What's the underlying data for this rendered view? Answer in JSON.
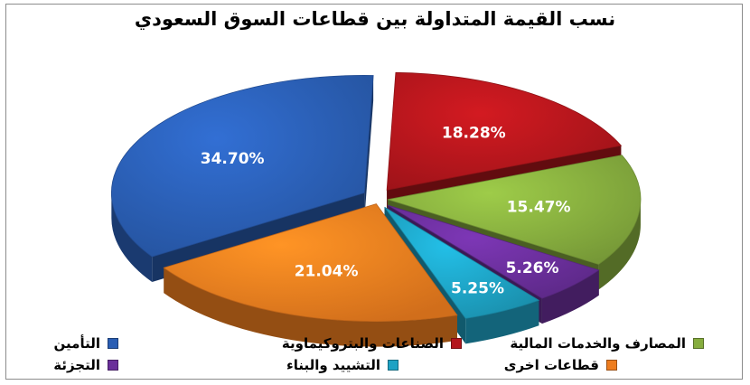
{
  "chart_data": {
    "type": "pie",
    "title": "نسب القيمة المتداولة بين قطاعات السوق السعودي",
    "legend_position": "bottom",
    "slices": [
      {
        "label": "الصناعات والبتروكيماوية",
        "value": 18.28,
        "value_label": "18.28%",
        "color": "#b3161c"
      },
      {
        "label": "المصارف والخدمات المالية",
        "value": 15.47,
        "value_label": "15.47%",
        "color": "#86ad3e"
      },
      {
        "label": "التجزئة",
        "value": 5.26,
        "value_label": "5.26%",
        "color": "#6a2f9a"
      },
      {
        "label": "التشييد والبناء",
        "value": 5.25,
        "value_label": "5.25%",
        "color": "#1ea2c4"
      },
      {
        "label": "قطاعات اخرى",
        "value": 21.04,
        "value_label": "21.04%",
        "color": "#ee7d1f"
      },
      {
        "label": "التأمين",
        "value": 34.7,
        "value_label": "34.70%",
        "color": "#2a5eb4"
      }
    ]
  }
}
